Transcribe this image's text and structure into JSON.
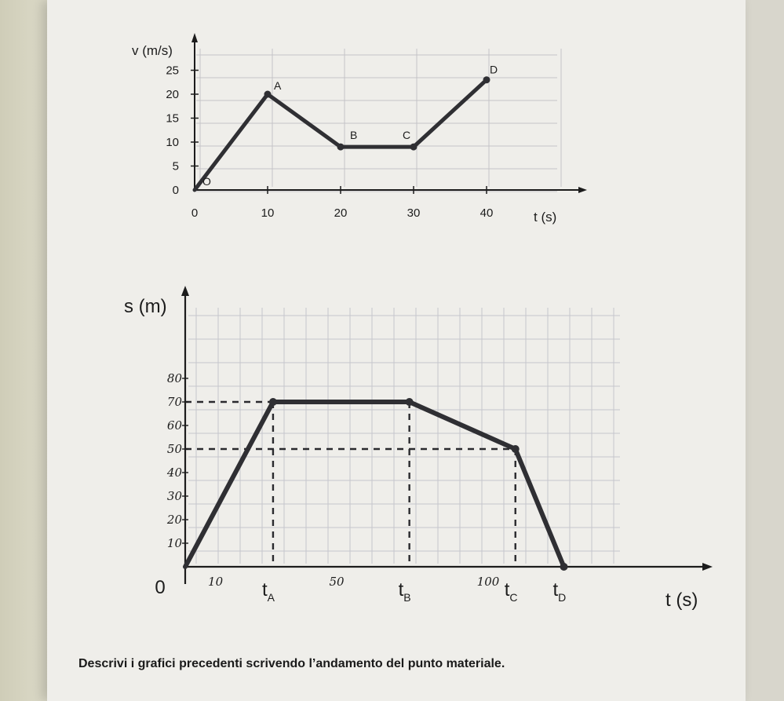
{
  "caption": "Descrivi i grafici precedenti scrivendo l’andamento del punto materiale.",
  "chart_data": [
    {
      "type": "line",
      "title": "",
      "xlabel": "t (s)",
      "ylabel": "v (m/s)",
      "xlim": [
        0,
        42
      ],
      "ylim": [
        0,
        27
      ],
      "x_ticks": [
        0,
        10,
        20,
        30,
        40
      ],
      "y_ticks": [
        0,
        5,
        10,
        15,
        20,
        25
      ],
      "grid": true,
      "series": [
        {
          "points": [
            {
              "label": "O",
              "x": 0,
              "y": 0
            },
            {
              "label": "A",
              "x": 10,
              "y": 20
            },
            {
              "label": "B",
              "x": 20,
              "y": 9
            },
            {
              "label": "C",
              "x": 30,
              "y": 9
            },
            {
              "label": "D",
              "x": 40,
              "y": 23
            }
          ]
        }
      ]
    },
    {
      "type": "line",
      "title": "",
      "xlabel": "t (s)",
      "ylabel": "s (m)",
      "xlim": [
        0,
        120
      ],
      "ylim": [
        0,
        90
      ],
      "y_ticks": [
        10,
        20,
        30,
        40,
        50,
        60,
        70,
        80
      ],
      "origin_label": "0",
      "x_ticks": [
        {
          "value": 10,
          "label": "10"
        },
        {
          "value": 50,
          "label": "50"
        },
        {
          "value": 100,
          "label": "100"
        }
      ],
      "time_marks": [
        {
          "letter": "t",
          "sub": "A",
          "x": 29
        },
        {
          "letter": "t",
          "sub": "B",
          "x": 74
        },
        {
          "letter": "t",
          "sub": "C",
          "x": 109
        },
        {
          "letter": "t",
          "sub": "D",
          "x": 125
        }
      ],
      "grid": true,
      "series": [
        {
          "points": [
            {
              "x": 0,
              "y": 0
            },
            {
              "x": 29,
              "y": 70
            },
            {
              "x": 74,
              "y": 70
            },
            {
              "x": 109,
              "y": 50
            },
            {
              "x": 125,
              "y": 0
            }
          ]
        }
      ],
      "dashed_guides": [
        {
          "y": 70,
          "x_from": 0,
          "x_to": 29
        },
        {
          "y": 50,
          "x_from": 0,
          "x_to": 109
        },
        {
          "x": 29,
          "y_from": 0,
          "y_to": 70
        },
        {
          "x": 74,
          "y_from": 0,
          "y_to": 70
        },
        {
          "x": 109,
          "y_from": 0,
          "y_to": 50
        }
      ]
    }
  ]
}
